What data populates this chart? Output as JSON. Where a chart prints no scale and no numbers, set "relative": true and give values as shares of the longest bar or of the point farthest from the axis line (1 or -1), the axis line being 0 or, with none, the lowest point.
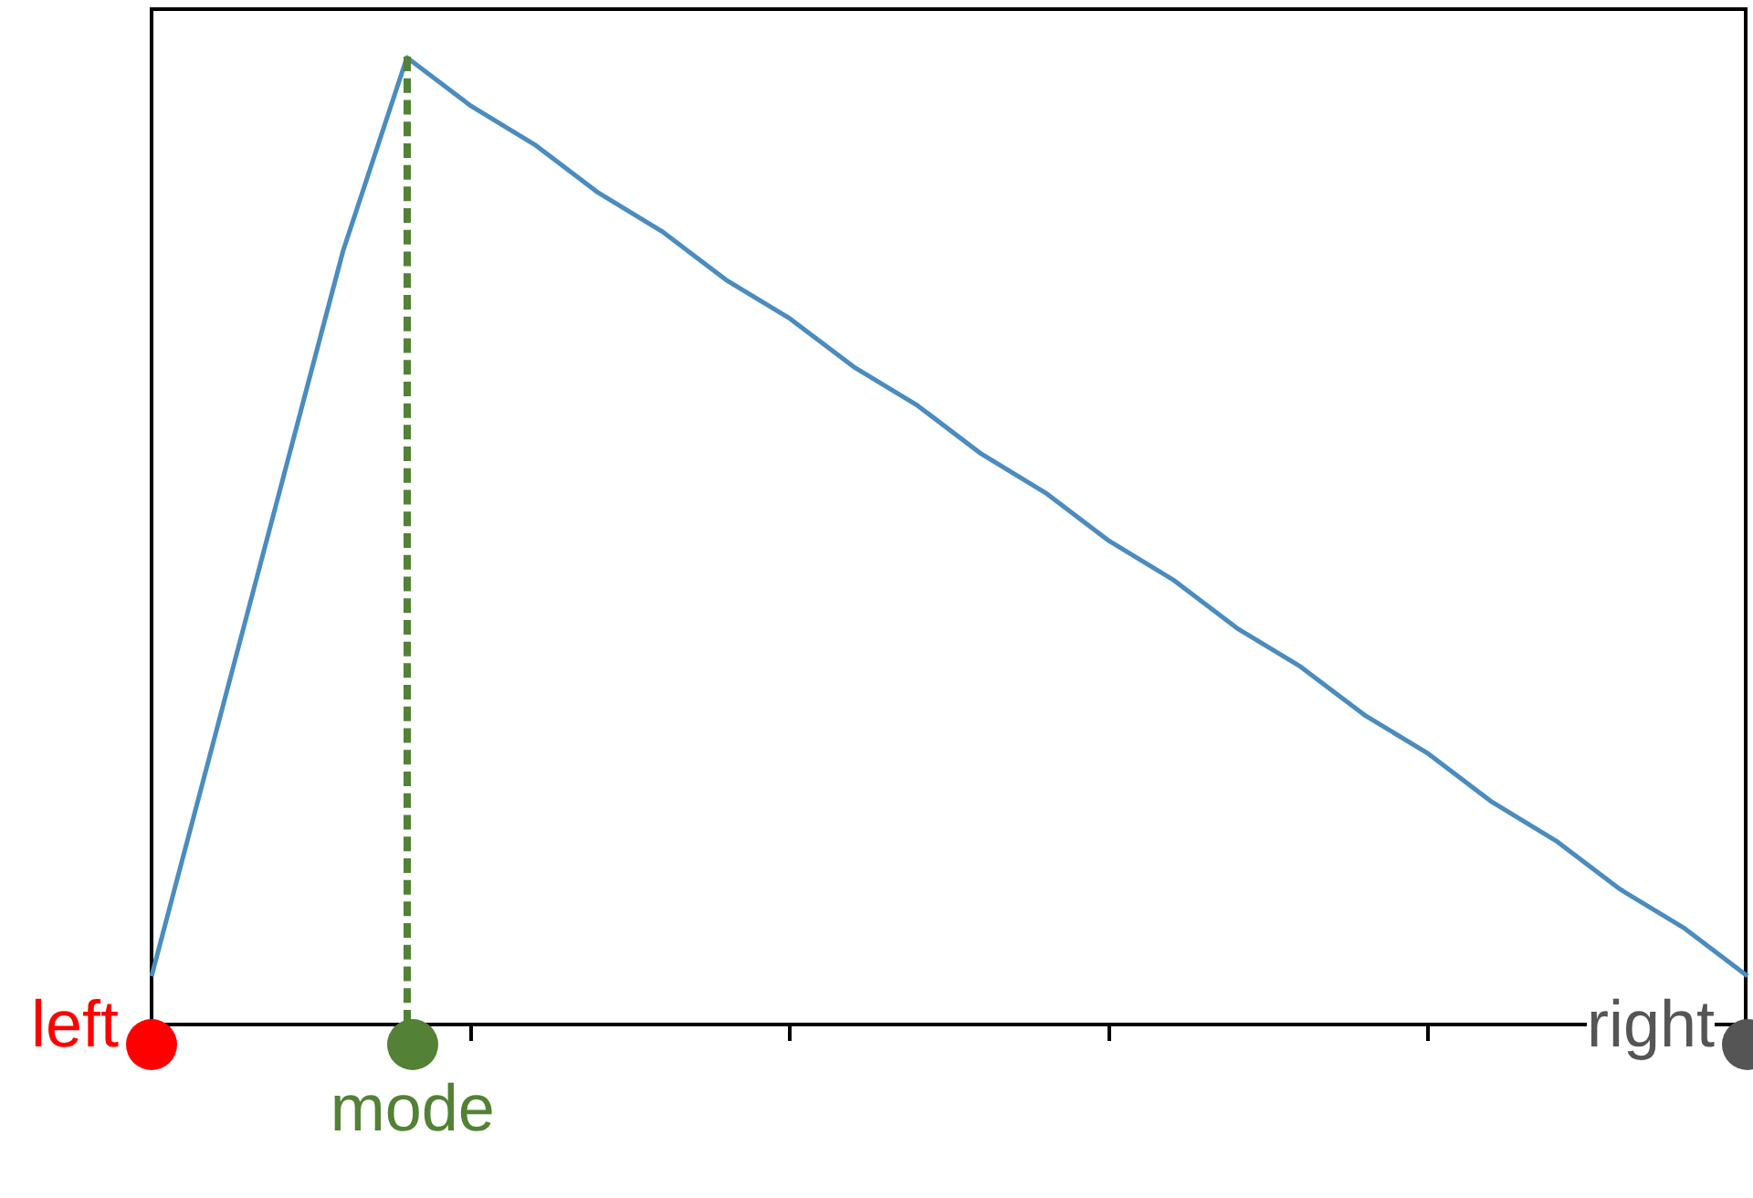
{
  "chart_data": {
    "type": "line",
    "relative": true,
    "categories": [
      null,
      null,
      null,
      null,
      null,
      null,
      null,
      null,
      null,
      null,
      null,
      null,
      null,
      null,
      null,
      null,
      null,
      null,
      null,
      null,
      null,
      null,
      null,
      null,
      null,
      null
    ],
    "series": [
      {
        "color": "#4a8cc0",
        "values": [
          0.05,
          0.3,
          0.55,
          0.8,
          1,
          0.95,
          0.91,
          0.86,
          0.82,
          0.77,
          0.73,
          0.68,
          0.64,
          0.59,
          0.55,
          0.5,
          0.46,
          0.41,
          0.37,
          0.32,
          0.28,
          0.23,
          0.19,
          0.14,
          0.1,
          0.05
        ]
      }
    ],
    "annotations": [
      "left",
      "mode",
      "right"
    ]
  }
}
